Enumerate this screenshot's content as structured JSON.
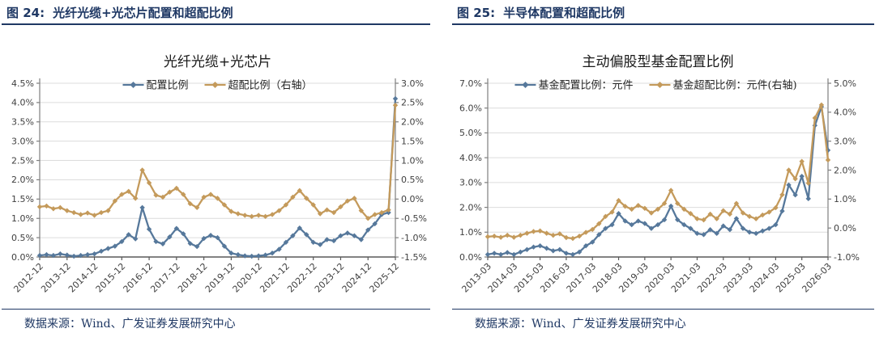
{
  "colors": {
    "navy": "#1F3864",
    "series_blue": "#56789B",
    "series_tan": "#C49A5B",
    "grid": "#DCDCDC",
    "axis": "#7F7F7F",
    "tick_text": "#404040"
  },
  "figures": [
    {
      "label": "图 24:",
      "title": "光纤光缆+光芯片配置和超配比例",
      "source": "数据来源：Wind、广发证券发展研究中心"
    },
    {
      "label": "图 25:",
      "title": "半导体配置和超配比例",
      "source": "数据来源：Wind、广发证券发展研究中心"
    }
  ],
  "chart_data": [
    {
      "type": "line",
      "title": "光纤光缆+光芯片",
      "font_style": "sans",
      "legend_position": "top",
      "grid": true,
      "categories": [
        "2012-12",
        "2013-03",
        "2013-06",
        "2013-09",
        "2013-12",
        "2014-03",
        "2014-06",
        "2014-09",
        "2014-12",
        "2015-03",
        "2015-06",
        "2015-09",
        "2015-12",
        "2016-03",
        "2016-06",
        "2016-09",
        "2016-12",
        "2017-03",
        "2017-06",
        "2017-09",
        "2017-12",
        "2018-03",
        "2018-06",
        "2018-09",
        "2018-12",
        "2019-03",
        "2019-06",
        "2019-09",
        "2019-12",
        "2020-03",
        "2020-06",
        "2020-09",
        "2020-12",
        "2021-03",
        "2021-06",
        "2021-09",
        "2021-12",
        "2022-03",
        "2022-06",
        "2022-09",
        "2022-12",
        "2023-03",
        "2023-06",
        "2023-09",
        "2023-12",
        "2024-03",
        "2024-06",
        "2024-09",
        "2024-12",
        "2025-03",
        "2025-06",
        "2025-09",
        "2025-12"
      ],
      "x_tick_every": 4,
      "x_tick_labels": [
        "2012-12",
        "2013-12",
        "2014-12",
        "2015-12",
        "2016-12",
        "2017-12",
        "2018-12",
        "2019-12",
        "2020-12",
        "2021-12",
        "2022-12",
        "2023-12",
        "2024-12",
        "2025-12"
      ],
      "left_axis": {
        "min": 0.0,
        "max": 4.5,
        "ticks": [
          "4.5%",
          "4.0%",
          "3.5%",
          "3.0%",
          "2.5%",
          "2.0%",
          "1.5%",
          "1.0%",
          "0.5%",
          "0.0%"
        ]
      },
      "right_axis": {
        "min": -1.5,
        "max": 3.0,
        "ticks": [
          "3.0%",
          "2.5%",
          "2.0%",
          "1.5%",
          "1.0%",
          "0.5%",
          "0.0%",
          "-0.5%",
          "-1.0%",
          "-1.5%"
        ]
      },
      "series": [
        {
          "name": "配置比例",
          "axis": "left",
          "color": "#56789B",
          "values": [
            0.04,
            0.06,
            0.04,
            0.08,
            0.05,
            0.02,
            0.04,
            0.06,
            0.08,
            0.15,
            0.22,
            0.28,
            0.4,
            0.58,
            0.47,
            1.28,
            0.72,
            0.4,
            0.34,
            0.52,
            0.74,
            0.6,
            0.35,
            0.27,
            0.48,
            0.56,
            0.5,
            0.28,
            0.1,
            0.06,
            0.03,
            0.02,
            0.03,
            0.05,
            0.1,
            0.2,
            0.38,
            0.55,
            0.75,
            0.58,
            0.38,
            0.32,
            0.45,
            0.42,
            0.55,
            0.62,
            0.55,
            0.45,
            0.7,
            0.86,
            1.1,
            1.15,
            4.1
          ]
        },
        {
          "name": "超配比例（右轴）",
          "axis": "right",
          "color": "#C49A5B",
          "values": [
            -0.2,
            -0.18,
            -0.25,
            -0.22,
            -0.3,
            -0.35,
            -0.4,
            -0.36,
            -0.42,
            -0.35,
            -0.3,
            -0.05,
            0.12,
            0.2,
            0.02,
            0.75,
            0.42,
            0.1,
            0.05,
            0.18,
            0.28,
            0.12,
            -0.12,
            -0.22,
            0.05,
            0.12,
            0.02,
            -0.15,
            -0.32,
            -0.38,
            -0.42,
            -0.45,
            -0.42,
            -0.45,
            -0.4,
            -0.3,
            -0.15,
            0.05,
            0.22,
            0.02,
            -0.15,
            -0.38,
            -0.28,
            -0.35,
            -0.2,
            -0.05,
            0.02,
            -0.3,
            -0.5,
            -0.4,
            -0.35,
            -0.28,
            2.43
          ]
        }
      ]
    },
    {
      "type": "line",
      "title": "主动偏股型基金配置比例",
      "font_style": "serif",
      "legend_position": "top",
      "grid": true,
      "categories": [
        "2013-03",
        "2013-06",
        "2013-09",
        "2013-12",
        "2014-03",
        "2014-06",
        "2014-09",
        "2014-12",
        "2015-03",
        "2015-06",
        "2015-09",
        "2015-12",
        "2016-03",
        "2016-06",
        "2016-09",
        "2016-12",
        "2017-03",
        "2017-06",
        "2017-09",
        "2017-12",
        "2018-03",
        "2018-06",
        "2018-09",
        "2018-12",
        "2019-03",
        "2019-06",
        "2019-09",
        "2019-12",
        "2020-03",
        "2020-06",
        "2020-09",
        "2020-12",
        "2021-03",
        "2021-06",
        "2021-09",
        "2021-12",
        "2022-03",
        "2022-06",
        "2022-09",
        "2022-12",
        "2023-03",
        "2023-06",
        "2023-09",
        "2023-12",
        "2024-03",
        "2024-06",
        "2024-09",
        "2024-12",
        "2025-03",
        "2025-06",
        "2025-09",
        "2025-12",
        "2026-03"
      ],
      "x_tick_every": 4,
      "x_tick_labels": [
        "2013-03",
        "2014-03",
        "2015-03",
        "2016-03",
        "2017-03",
        "2018-03",
        "2019-03",
        "2020-03",
        "2021-03",
        "2022-03",
        "2023-03",
        "2024-03",
        "2025-03",
        "2026-03"
      ],
      "left_axis": {
        "min": 0.0,
        "max": 7.0,
        "ticks": [
          "7.0%",
          "6.0%",
          "5.0%",
          "4.0%",
          "3.0%",
          "2.0%",
          "1.0%",
          "0.0%"
        ]
      },
      "right_axis": {
        "min": -1.0,
        "max": 5.0,
        "ticks": [
          "5.0%",
          "4.0%",
          "3.0%",
          "2.0%",
          "1.0%",
          "0.0%",
          "-1.0%"
        ]
      },
      "series": [
        {
          "name": "基金配置比例：元件",
          "axis": "left",
          "color": "#56789B",
          "values": [
            0.1,
            0.15,
            0.1,
            0.18,
            0.1,
            0.2,
            0.3,
            0.4,
            0.45,
            0.35,
            0.25,
            0.3,
            0.15,
            0.1,
            0.2,
            0.45,
            0.6,
            0.9,
            1.15,
            1.3,
            1.75,
            1.45,
            1.3,
            1.45,
            1.35,
            1.15,
            1.3,
            1.5,
            2.05,
            1.5,
            1.3,
            1.15,
            0.95,
            0.9,
            1.1,
            0.95,
            1.25,
            1.1,
            1.55,
            1.15,
            1.0,
            0.95,
            1.05,
            1.15,
            1.3,
            1.85,
            2.9,
            2.5,
            3.25,
            2.35,
            5.3,
            6.05,
            4.3
          ]
        },
        {
          "name": "基金超配比例：元件(右轴)",
          "axis": "right",
          "color": "#C49A5B",
          "values": [
            -0.3,
            -0.28,
            -0.32,
            -0.25,
            -0.32,
            -0.25,
            -0.18,
            -0.12,
            -0.1,
            -0.18,
            -0.25,
            -0.2,
            -0.33,
            -0.36,
            -0.28,
            -0.15,
            -0.05,
            0.15,
            0.4,
            0.55,
            0.95,
            0.75,
            0.65,
            0.78,
            0.68,
            0.52,
            0.65,
            0.85,
            1.3,
            0.85,
            0.65,
            0.5,
            0.32,
            0.28,
            0.48,
            0.32,
            0.6,
            0.48,
            0.85,
            0.52,
            0.4,
            0.32,
            0.45,
            0.55,
            0.7,
            1.15,
            2.0,
            1.7,
            2.3,
            1.55,
            3.8,
            4.25,
            2.35
          ]
        }
      ]
    }
  ]
}
